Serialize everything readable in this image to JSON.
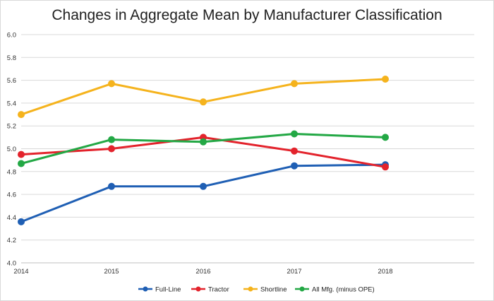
{
  "chart_data": {
    "type": "line",
    "title": "Changes in Aggregate Mean by Manufacturer Classification",
    "x": [
      "2014",
      "2015",
      "2016",
      "2017",
      "2018"
    ],
    "ylim": [
      4.0,
      6.0
    ],
    "yticks": [
      "4.0",
      "4.2",
      "4.4",
      "4.6",
      "4.8",
      "5.0",
      "5.2",
      "5.4",
      "5.6",
      "5.8",
      "6.0"
    ],
    "grid": "horizontal",
    "legend_position": "bottom",
    "series": [
      {
        "name": "Full-Line",
        "color": "#1f5fb4",
        "values": [
          4.36,
          4.67,
          4.67,
          4.85,
          4.86
        ]
      },
      {
        "name": "Tractor",
        "color": "#e3232c",
        "values": [
          4.95,
          5.0,
          5.1,
          4.98,
          4.84
        ]
      },
      {
        "name": "Shortline",
        "color": "#f5b31d",
        "values": [
          5.3,
          5.57,
          5.41,
          5.57,
          5.61
        ]
      },
      {
        "name": "All Mfg. (minus OPE)",
        "color": "#23a845",
        "values": [
          4.87,
          5.08,
          5.06,
          5.13,
          5.1
        ]
      }
    ]
  }
}
